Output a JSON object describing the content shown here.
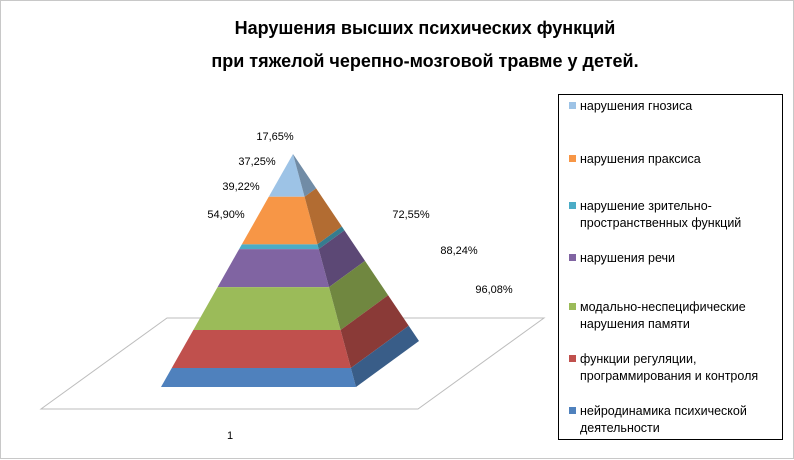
{
  "chart_data": {
    "type": "pyramid",
    "title": [
      "Нарушения высших психических функций",
      "при тяжелой черепно-мозговой травме у детей."
    ],
    "category_label": "1",
    "series": [
      {
        "name": "нарушения гнозиса",
        "value": 17.65,
        "label": "17,65%",
        "color": "#9dc3e6"
      },
      {
        "name": "нарушения праксиса",
        "value": 37.25,
        "label": "37,25%",
        "color": "#f79646"
      },
      {
        "name": "нарушение зрительно-пространственных функций",
        "value": 39.22,
        "label": "39,22%",
        "color": "#4bacc6"
      },
      {
        "name": "нарушения речи",
        "value": 54.9,
        "label": "54,90%",
        "color": "#8064a2"
      },
      {
        "name": "модально-неспецифические нарушения памяти",
        "value": 72.55,
        "label": "72,55%",
        "color": "#9bbb59"
      },
      {
        "name": "функции регуляции, программирования и контроля",
        "value": 88.24,
        "label": "88,24%",
        "color": "#c0504d"
      },
      {
        "name": "нейродинамика психической деятельности",
        "value": 96.08,
        "label": "96,08%",
        "color": "#4f81bd"
      }
    ],
    "legend_position": "right"
  }
}
